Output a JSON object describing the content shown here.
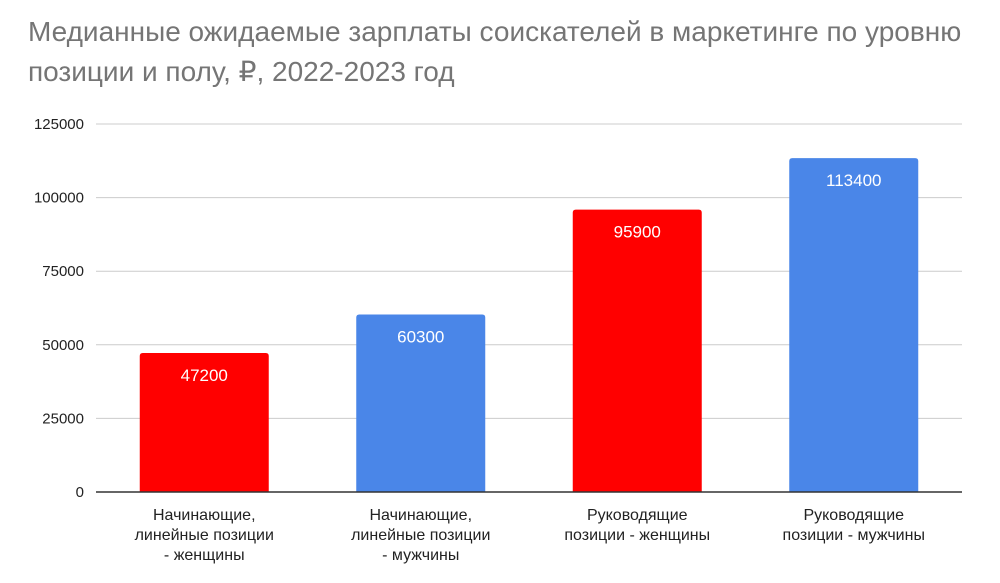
{
  "chart_data": {
    "type": "bar",
    "title": "Медианные ожидаемые зарплаты соискателей в маркетинге по уровню позиции и полу, ₽, 2022-2023 год",
    "categories": [
      [
        "Начинающие,",
        "линейные позиции",
        "- женщины"
      ],
      [
        "Начинающие,",
        "линейные позиции",
        "- мужчины"
      ],
      [
        "Руководящие",
        "позиции - женщины"
      ],
      [
        "Руководящие",
        "позиции - мужчины"
      ]
    ],
    "values": [
      47200,
      60300,
      95900,
      113400
    ],
    "data_labels": [
      "47200",
      "60300",
      "95900",
      "113400"
    ],
    "bar_colors": [
      "#ff0000",
      "#4a86e8",
      "#ff0000",
      "#4a86e8"
    ],
    "ylim": [
      0,
      125000
    ],
    "yticks": [
      "0",
      "25000",
      "50000",
      "75000",
      "100000",
      "125000"
    ],
    "ytick_values": [
      0,
      25000,
      50000,
      75000,
      100000,
      125000
    ],
    "grid": true,
    "legend": "none",
    "xlabel": "",
    "ylabel": ""
  }
}
